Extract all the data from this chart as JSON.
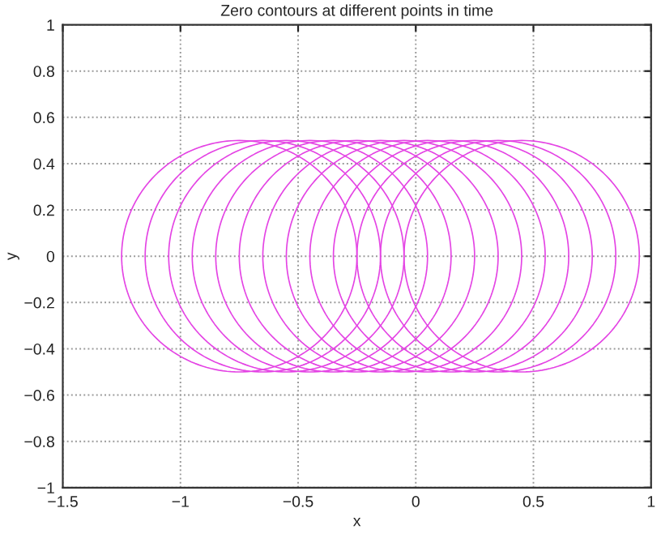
{
  "chart_data": {
    "type": "line",
    "title": "Zero contours at different points in time",
    "xlabel": "x",
    "ylabel": "y",
    "xlim": [
      -1.5,
      1
    ],
    "ylim": [
      -1,
      1
    ],
    "xticks": [
      -1.5,
      -1,
      -0.5,
      0,
      0.5,
      1
    ],
    "yticks": [
      -1,
      -0.8,
      -0.6,
      -0.4,
      -0.2,
      0,
      0.2,
      0.4,
      0.6,
      0.8,
      1
    ],
    "grid": true
  }
}
